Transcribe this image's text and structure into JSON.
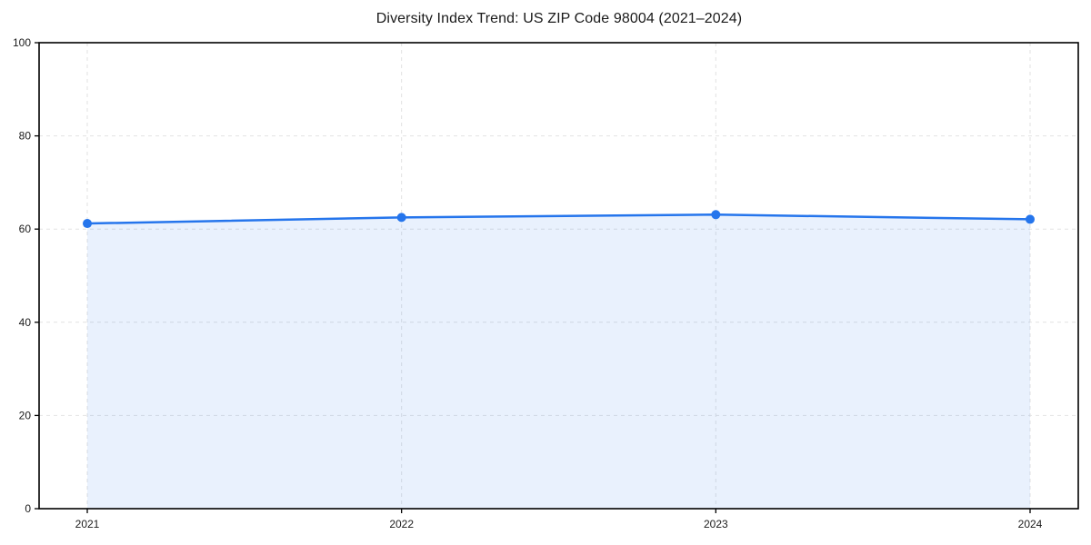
{
  "chart_data": {
    "type": "area",
    "title": "Diversity Index Trend: US ZIP Code 98004 (2021–2024)",
    "categories": [
      "2021",
      "2022",
      "2023",
      "2024"
    ],
    "series": [
      {
        "name": "Diversity Index",
        "values": [
          61.2,
          62.5,
          63.1,
          62.1
        ]
      }
    ],
    "xlabel": "",
    "ylabel": "",
    "ylim": [
      0,
      100
    ],
    "yticks": [
      0,
      20,
      40,
      60,
      80,
      100
    ],
    "grid": "dashed-both-axes",
    "legend_position": "none",
    "colors": {
      "line": "#2575ec",
      "fill": "#2575ec",
      "fill_opacity": 0.1,
      "grid": "#e2e2e2",
      "axis": "#000000",
      "tick_text": "#1c1c1c",
      "title_text": "#1a1a1a",
      "background": "#ffffff"
    }
  }
}
